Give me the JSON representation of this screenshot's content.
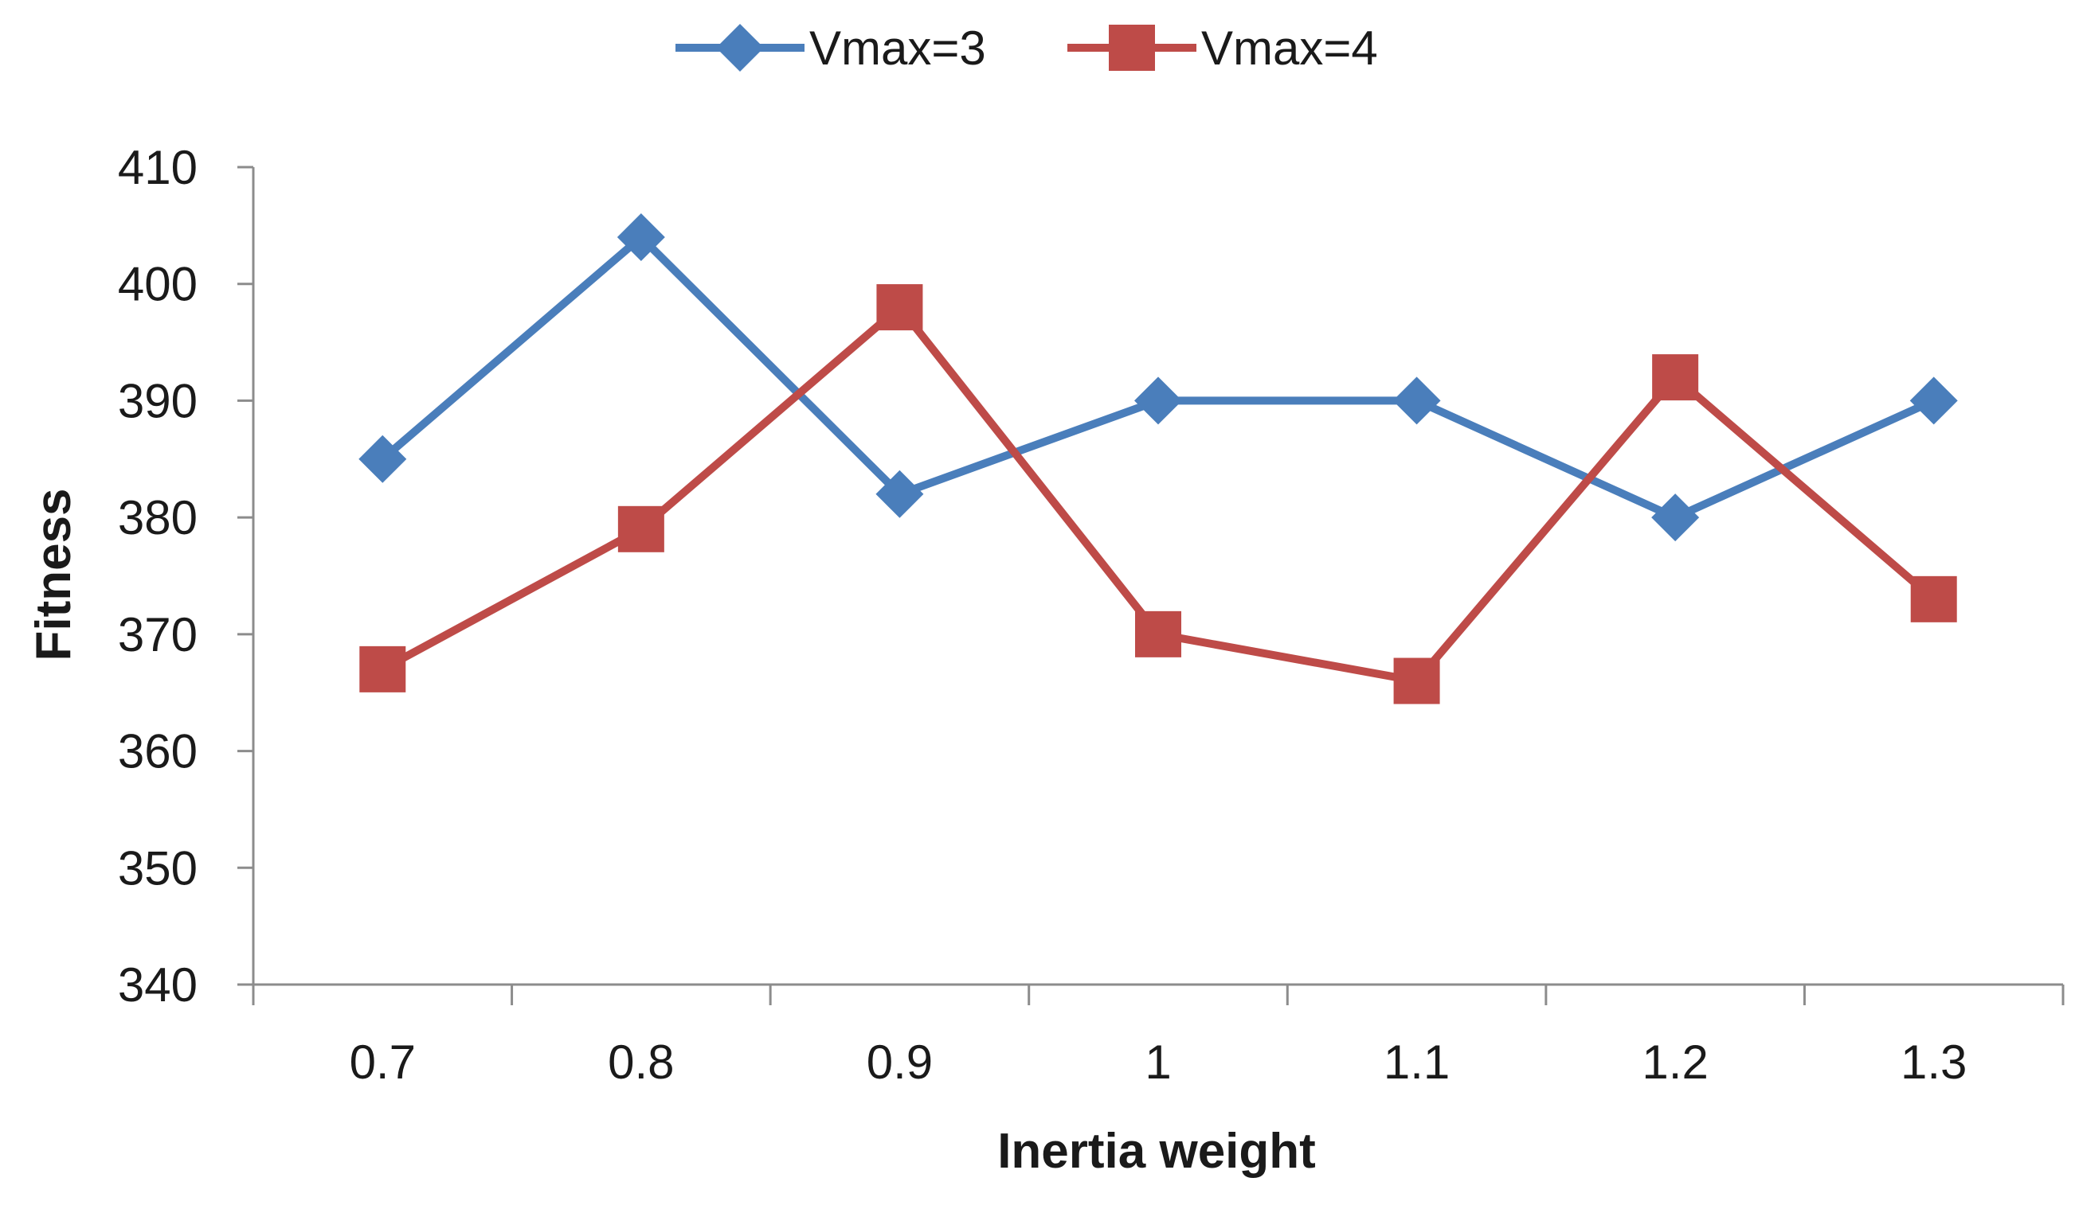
{
  "chart_data": {
    "type": "line",
    "title": "",
    "xlabel": "Inertia weight",
    "ylabel": "Fitness",
    "categories": [
      "0.7",
      "0.8",
      "0.9",
      "1",
      "1.1",
      "1.2",
      "1.3"
    ],
    "ylim": [
      340,
      410
    ],
    "yticks": [
      340,
      350,
      360,
      370,
      380,
      390,
      400,
      410
    ],
    "grid": false,
    "legend_position": "top",
    "series": [
      {
        "name": "Vmax=3",
        "color": "#4a7ebb",
        "marker": "diamond",
        "values": [
          385,
          404,
          382,
          390,
          390,
          380,
          390
        ]
      },
      {
        "name": "Vmax=4",
        "color": "#be4b48",
        "marker": "square",
        "values": [
          367,
          379,
          398,
          370,
          366,
          392,
          373
        ]
      }
    ]
  }
}
